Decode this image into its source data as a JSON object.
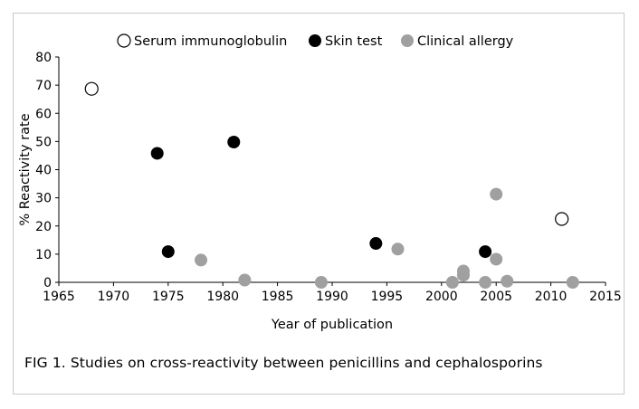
{
  "caption": "FIG 1. Studies on cross-reactivity between penicillins and cephalosporins",
  "chart_data": {
    "type": "scatter",
    "xlabel": "Year of publication",
    "ylabel": "% Reactivity rate",
    "xlim": [
      1965,
      2015
    ],
    "ylim": [
      0,
      80
    ],
    "xticks": [
      1965,
      1970,
      1975,
      1980,
      1985,
      1990,
      1995,
      2000,
      2005,
      2010,
      2015
    ],
    "yticks": [
      0,
      10,
      20,
      30,
      40,
      50,
      60,
      70,
      80
    ],
    "grid": false,
    "legend_position": "top-center",
    "series": [
      {
        "name": "Serum immunoglobulin",
        "marker": "open-circle",
        "color": "#000000",
        "points": [
          [
            1968,
            68.7
          ],
          [
            2011,
            22.5
          ]
        ]
      },
      {
        "name": "Skin test",
        "marker": "filled-circle",
        "color": "#000000",
        "points": [
          [
            1974,
            45.8
          ],
          [
            1975,
            10.9
          ],
          [
            1981,
            49.8
          ],
          [
            1994,
            13.8
          ],
          [
            2004,
            10.9
          ]
        ]
      },
      {
        "name": "Clinical allergy",
        "marker": "filled-circle",
        "color": "#a0a0a0",
        "points": [
          [
            1978,
            7.9
          ],
          [
            1982,
            0.8
          ],
          [
            1989,
            0
          ],
          [
            1996,
            11.8
          ],
          [
            2001,
            0
          ],
          [
            2002,
            2.5
          ],
          [
            2002,
            4.0
          ],
          [
            2004,
            0
          ],
          [
            2005,
            8.2
          ],
          [
            2005,
            31.3
          ],
          [
            2006,
            0.4
          ],
          [
            2012,
            0
          ]
        ]
      }
    ]
  }
}
